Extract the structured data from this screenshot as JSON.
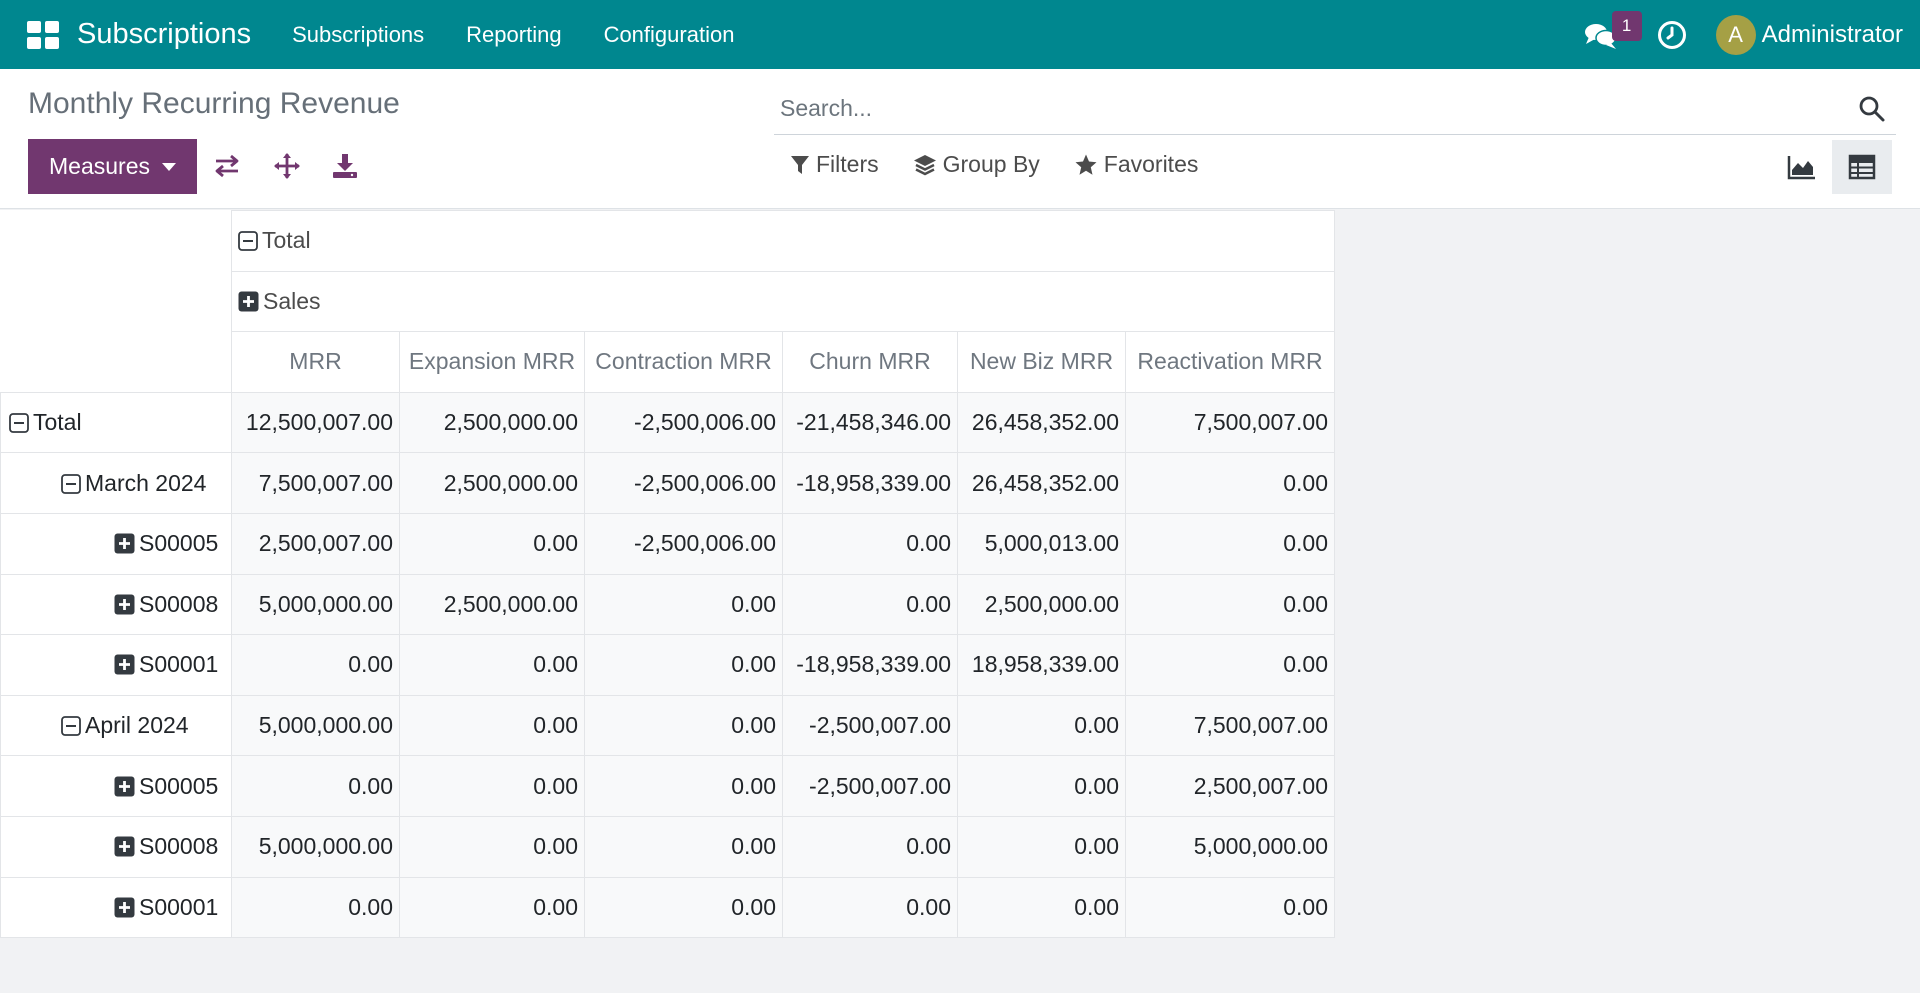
{
  "navbar": {
    "brand": "Subscriptions",
    "menu": [
      "Subscriptions",
      "Reporting",
      "Configuration"
    ],
    "chat_count": "1",
    "avatar_letter": "A",
    "user_name": "Administrator"
  },
  "control_panel": {
    "title": "Monthly Recurring Revenue",
    "measures_label": "Measures",
    "search_placeholder": "Search...",
    "filters_label": "Filters",
    "group_by_label": "Group By",
    "favorites_label": "Favorites"
  },
  "pivot": {
    "col_total": "Total",
    "col_group": "Sales",
    "measures": [
      "MRR",
      "Expansion MRR",
      "Contraction MRR",
      "Churn MRR",
      "New Biz MRR",
      "Reactivation MRR"
    ],
    "rows": [
      {
        "label": "Total",
        "values": [
          "12,500,007.00",
          "2,500,000.00",
          "-2,500,006.00",
          "-21,458,346.00",
          "26,458,352.00",
          "7,500,007.00"
        ]
      },
      {
        "label": "March 2024",
        "values": [
          "7,500,007.00",
          "2,500,000.00",
          "-2,500,006.00",
          "-18,958,339.00",
          "26,458,352.00",
          "0.00"
        ]
      },
      {
        "label": "S00005",
        "values": [
          "2,500,007.00",
          "0.00",
          "-2,500,006.00",
          "0.00",
          "5,000,013.00",
          "0.00"
        ]
      },
      {
        "label": "S00008",
        "values": [
          "5,000,000.00",
          "2,500,000.00",
          "0.00",
          "0.00",
          "2,500,000.00",
          "0.00"
        ]
      },
      {
        "label": "S00001",
        "values": [
          "0.00",
          "0.00",
          "0.00",
          "-18,958,339.00",
          "18,958,339.00",
          "0.00"
        ]
      },
      {
        "label": "April 2024",
        "values": [
          "5,000,000.00",
          "0.00",
          "0.00",
          "-2,500,007.00",
          "0.00",
          "7,500,007.00"
        ]
      },
      {
        "label": "S00005",
        "values": [
          "0.00",
          "0.00",
          "0.00",
          "-2,500,007.00",
          "0.00",
          "2,500,007.00"
        ]
      },
      {
        "label": "S00008",
        "values": [
          "5,000,000.00",
          "0.00",
          "0.00",
          "0.00",
          "0.00",
          "5,000,000.00"
        ]
      },
      {
        "label": "S00001",
        "values": [
          "0.00",
          "0.00",
          "0.00",
          "0.00",
          "0.00",
          "0.00"
        ]
      }
    ]
  },
  "colors": {
    "navbar": "#00878f",
    "primary": "#71376f",
    "avatar": "#a5a045"
  }
}
